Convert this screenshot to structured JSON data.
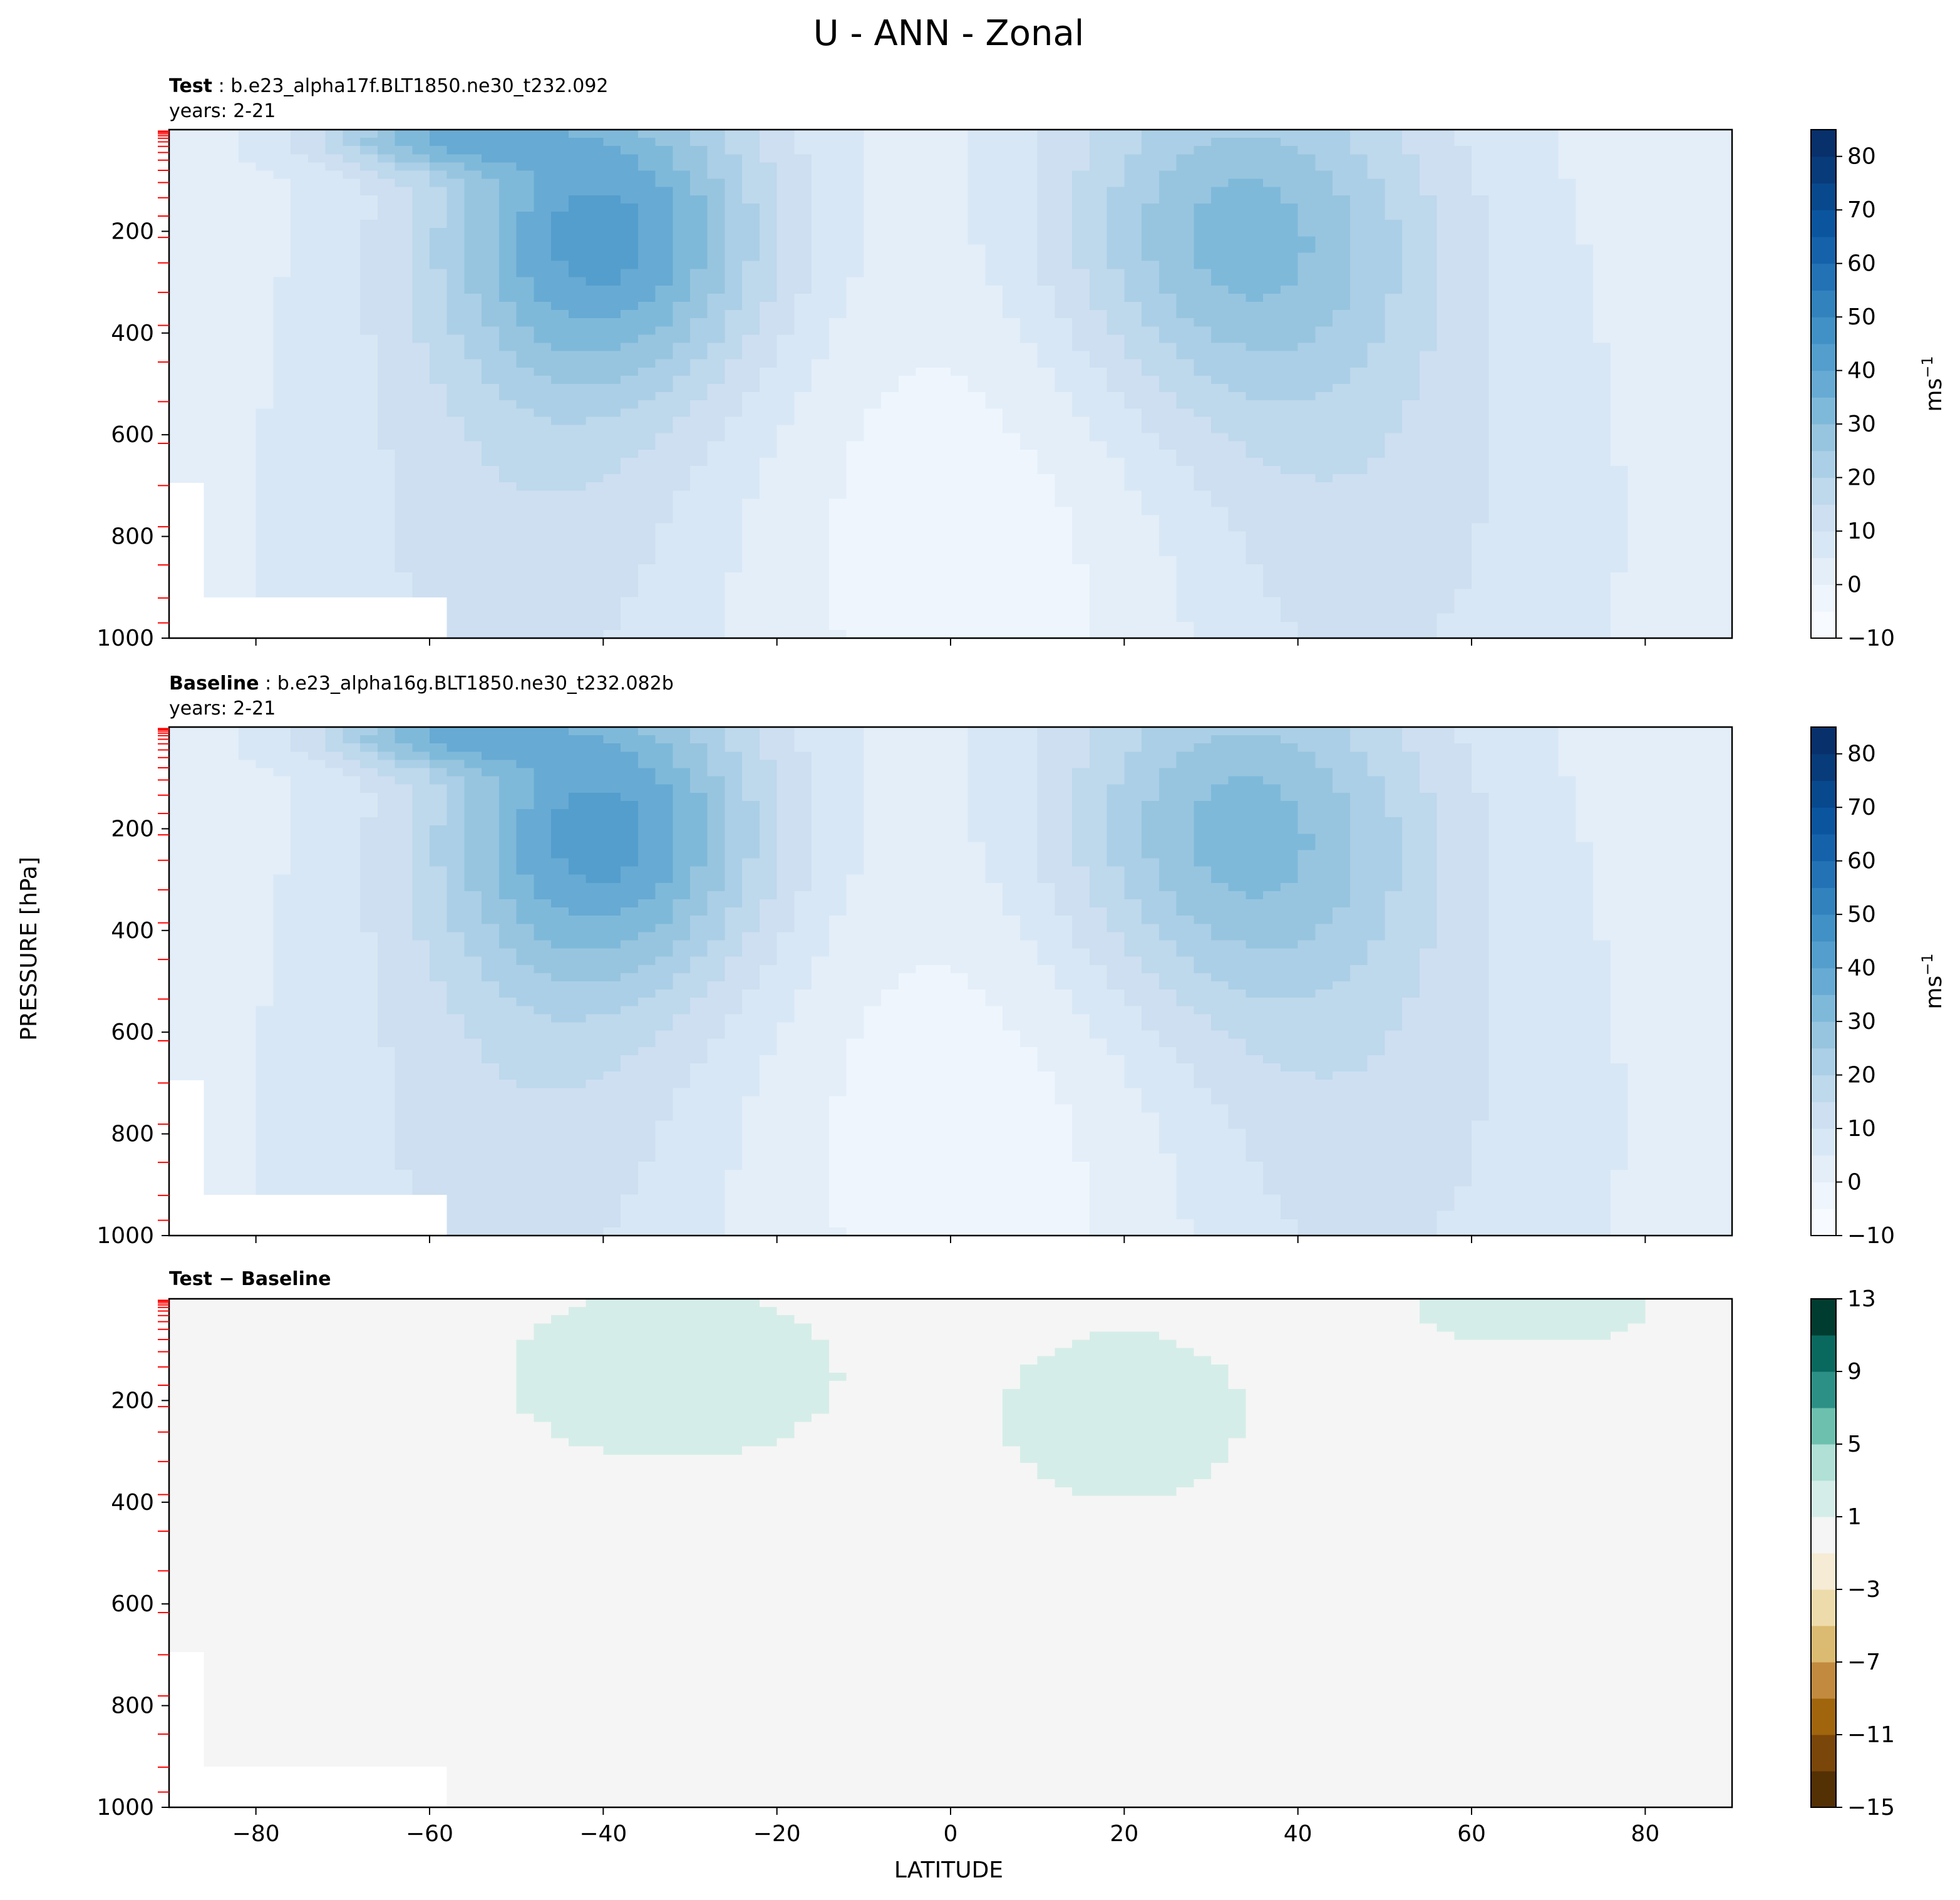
{
  "figure": {
    "title": "U - ANN - Zonal",
    "xlabel": "LATITUDE",
    "ylabel": "PRESSURE [hPa]"
  },
  "chart_data": [
    {
      "type": "contour",
      "name": "test",
      "label_bold": "Test",
      "label_rest": " : b.e23_alpha17f.BLT1850.ne30_t232.092",
      "years": "years: 2-21",
      "xlim": [
        -90,
        90
      ],
      "ylim": [
        1000,
        0
      ],
      "xticks": [
        -80,
        -60,
        -40,
        -20,
        0,
        20,
        40,
        60,
        80
      ],
      "yticks": [
        200,
        400,
        600,
        800,
        1000
      ],
      "colorbar": {
        "label": "ms",
        "label_sup": "−1",
        "levels": [
          -10,
          -5,
          0,
          5,
          10,
          15,
          20,
          25,
          30,
          35,
          40,
          45,
          50,
          55,
          60,
          65,
          70,
          75,
          80,
          85
        ],
        "ticks": [
          -10,
          0,
          10,
          20,
          30,
          40,
          50,
          60,
          70,
          80
        ],
        "colors": [
          "#f7fbff",
          "#eef5fc",
          "#e3eef9",
          "#d8e7f5",
          "#cddff1",
          "#bed8ec",
          "#abcfe6",
          "#97c5df",
          "#7fb9da",
          "#67aad3",
          "#549ecd",
          "#4191c6",
          "#3182bd",
          "#2372b5",
          "#1662aa",
          "#0b559f",
          "#08488d",
          "#083b79",
          "#08306b"
        ]
      },
      "features": {
        "nh_jet_max_ms": 30,
        "sh_jet_max_ms": 40,
        "nh_jet_center": [
          33,
          200
        ],
        "sh_jet_center": [
          -40,
          200
        ]
      }
    },
    {
      "type": "contour",
      "name": "baseline",
      "label_bold": "Baseline",
      "label_rest": " : b.e23_alpha16g.BLT1850.ne30_t232.082b",
      "years": "years: 2-21",
      "xlim": [
        -90,
        90
      ],
      "ylim": [
        1000,
        0
      ],
      "xticks": [
        -80,
        -60,
        -40,
        -20,
        0,
        20,
        40,
        60,
        80
      ],
      "yticks": [
        200,
        400,
        600,
        800,
        1000
      ],
      "colorbar": {
        "label": "ms",
        "label_sup": "−1",
        "levels": [
          -10,
          -5,
          0,
          5,
          10,
          15,
          20,
          25,
          30,
          35,
          40,
          45,
          50,
          55,
          60,
          65,
          70,
          75,
          80,
          85
        ],
        "ticks": [
          -10,
          0,
          10,
          20,
          30,
          40,
          50,
          60,
          70,
          80
        ],
        "colors": [
          "#f7fbff",
          "#eef5fc",
          "#e3eef9",
          "#d8e7f5",
          "#cddff1",
          "#bed8ec",
          "#abcfe6",
          "#97c5df",
          "#7fb9da",
          "#67aad3",
          "#549ecd",
          "#4191c6",
          "#3182bd",
          "#2372b5",
          "#1662aa",
          "#0b559f",
          "#08488d",
          "#083b79",
          "#08306b"
        ]
      },
      "features": {
        "nh_jet_max_ms": 30,
        "sh_jet_max_ms": 40,
        "nh_jet_center": [
          33,
          200
        ],
        "sh_jet_center": [
          -40,
          200
        ]
      }
    },
    {
      "type": "contour",
      "name": "difference",
      "label_bold": "Test − Baseline",
      "label_rest": "",
      "years": "",
      "xlim": [
        -90,
        90
      ],
      "ylim": [
        1000,
        0
      ],
      "xticks": [
        -80,
        -60,
        -40,
        -20,
        0,
        20,
        40,
        60,
        80
      ],
      "yticks": [
        200,
        400,
        600,
        800,
        1000
      ],
      "colorbar": {
        "label": "",
        "levels": [
          -15,
          -13,
          -11,
          -9,
          -7,
          -5,
          -3,
          -1,
          1,
          3,
          5,
          7,
          9,
          11,
          13
        ],
        "ticks": [
          -15,
          -11,
          -7,
          -3,
          1,
          5,
          9,
          13
        ],
        "colors": [
          "#543005",
          "#7a4609",
          "#a0650d",
          "#c28a3f",
          "#dbbb72",
          "#eedbab",
          "#f6ebd4",
          "#f5f5f5",
          "#d5ede8",
          "#b0e0d6",
          "#6dc0ae",
          "#2d9087",
          "#09695f",
          "#003c30"
        ]
      },
      "features": {
        "background_diff_ms": 0,
        "positive_regions_diff_ms": 2
      }
    }
  ]
}
